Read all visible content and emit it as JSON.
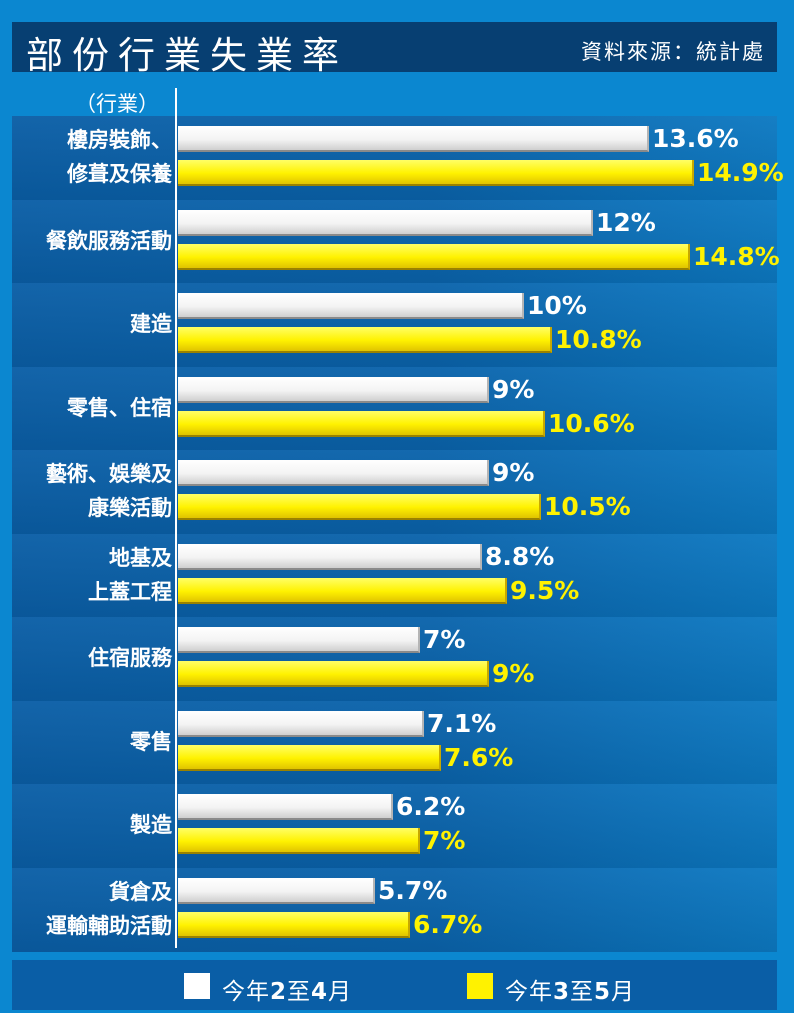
{
  "title": "部份行業失業率",
  "source": "資料來源：統計處",
  "axis_caption": "（行業）",
  "colors": {
    "series_a": "#ffffff",
    "series_b": "#fff200",
    "background": "#0b87d0",
    "band": "#0a5ea6",
    "title_bg": "#073f72"
  },
  "legend": [
    {
      "parts": [
        "今年",
        "2",
        "至",
        "4",
        "月"
      ]
    },
    {
      "parts": [
        "今年",
        "3",
        "至",
        "5",
        "月"
      ]
    }
  ],
  "chart_data": {
    "type": "bar",
    "orientation": "horizontal",
    "title": "部份行業失業率",
    "ylabel": "（行業）",
    "categories": [
      [
        "樓房裝飾、",
        "修葺及保養"
      ],
      [
        "餐飲服務活動"
      ],
      [
        "建造"
      ],
      [
        "零售、住宿"
      ],
      [
        "藝術、娛樂及",
        "康樂活動"
      ],
      [
        "地基及",
        "上蓋工程"
      ],
      [
        "住宿服務"
      ],
      [
        "零售"
      ],
      [
        "製造"
      ],
      [
        "貨倉及",
        "運輸輔助活動"
      ]
    ],
    "series": [
      {
        "name": "今年2至4月",
        "color": "#ffffff",
        "values": [
          13.6,
          12,
          10,
          9,
          9,
          8.8,
          7,
          7.1,
          6.2,
          5.7
        ],
        "labels": [
          "13.6%",
          "12%",
          "10%",
          "9%",
          "9%",
          "8.8%",
          "7%",
          "7.1%",
          "6.2%",
          "5.7%"
        ]
      },
      {
        "name": "今年3至5月",
        "color": "#fff200",
        "values": [
          14.9,
          14.8,
          10.8,
          10.6,
          10.5,
          9.5,
          9,
          7.6,
          7,
          6.7
        ],
        "labels": [
          "14.9%",
          "14.8%",
          "10.8%",
          "10.6%",
          "10.5%",
          "9.5%",
          "9%",
          "7.6%",
          "7%",
          "6.7%"
        ]
      }
    ],
    "xlim": [
      0,
      17
    ],
    "grid": false,
    "legend_position": "bottom"
  }
}
